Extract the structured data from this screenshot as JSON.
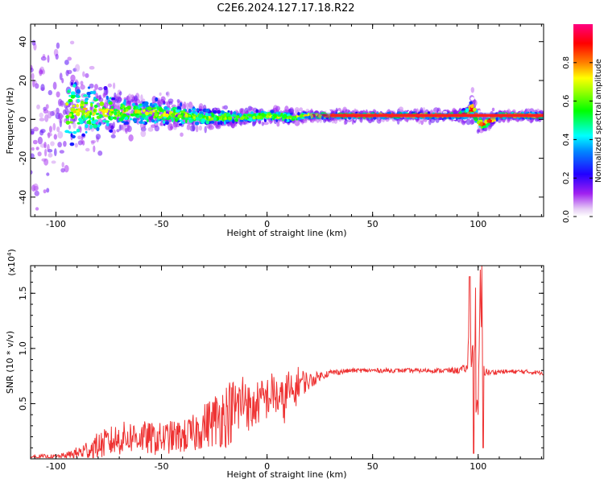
{
  "title": "C2E6.2024.127.17.18.R22",
  "chart_data": [
    {
      "type": "heatmap",
      "title": "C2E6.2024.127.17.18.R22",
      "xlabel": "Height of straight line (km)",
      "ylabel": "Frequency (Hz)",
      "xlim": [
        -112,
        131
      ],
      "ylim": [
        -50,
        49
      ],
      "xticks": [
        "-100",
        "-50",
        "0",
        "50",
        "100"
      ],
      "yticks": [
        "-40",
        "-20",
        "0",
        "20",
        "40"
      ],
      "colorbar": {
        "label": "Normalized spectral amplitude",
        "range": [
          0,
          1
        ],
        "ticks": [
          "0.0",
          "0.2",
          "0.4",
          "0.6",
          "0.8"
        ],
        "colors": [
          "#ffffff",
          "#a020f0",
          "#0000ff",
          "#00ffff",
          "#00ff00",
          "#ffff00",
          "#ff8000",
          "#ff0000",
          "#ff00a0"
        ]
      },
      "ridge": {
        "description_x_km": [
          -110,
          -90,
          -70,
          -50,
          -30,
          -10,
          0,
          10,
          20,
          30,
          50,
          70,
          90,
          95,
          97,
          100,
          102,
          110,
          131
        ],
        "center_freq_hz": [
          0,
          5,
          4,
          3,
          1,
          1,
          2,
          1,
          2,
          2,
          2,
          2,
          2,
          3,
          6,
          0,
          -3,
          2,
          2
        ],
        "spread_hz": [
          45,
          20,
          10,
          8,
          5,
          3,
          3,
          3,
          2,
          2,
          2,
          2,
          2,
          4,
          6,
          6,
          4,
          2,
          2
        ]
      }
    },
    {
      "type": "line",
      "title": "",
      "xlabel": "Height of straight line (km)",
      "ylabel": "SNR (10 * v/v)",
      "y_multiplier": "(x10",
      "y_multiplier_exp": "4",
      "xlim": [
        -112,
        131
      ],
      "ylim": [
        0,
        1.75
      ],
      "xticks": [
        "-100",
        "-50",
        "0",
        "50",
        "100"
      ],
      "yticks": [
        "0.5",
        "1.0",
        "1.5"
      ],
      "color": "#ee3333",
      "series": [
        {
          "x": [
            -112,
            -100,
            -95,
            -90,
            -85,
            -80,
            -75,
            -70,
            -65,
            -60,
            -55,
            -50,
            -45,
            -40,
            -35,
            -30,
            -25,
            -20,
            -15,
            -12,
            -10,
            -8,
            -5,
            0,
            3,
            5,
            8,
            10,
            12,
            15,
            20,
            25,
            30,
            40,
            50,
            60,
            70,
            80,
            90,
            95,
            96,
            97,
            98,
            99,
            100,
            101,
            102,
            103,
            105,
            110,
            120,
            131
          ],
          "values": [
            0.02,
            0.02,
            0.03,
            0.05,
            0.08,
            0.12,
            0.15,
            0.18,
            0.2,
            0.2,
            0.18,
            0.18,
            0.2,
            0.2,
            0.22,
            0.3,
            0.35,
            0.4,
            0.45,
            0.5,
            0.6,
            0.4,
            0.5,
            0.55,
            0.6,
            0.55,
            0.5,
            0.65,
            0.55,
            0.7,
            0.7,
            0.75,
            0.78,
            0.8,
            0.8,
            0.8,
            0.8,
            0.8,
            0.8,
            0.82,
            1.45,
            0.8,
            1.3,
            0.5,
            0.4,
            1.6,
            0.9,
            0.8,
            0.78,
            0.79,
            0.79,
            0.78
          ],
          "noise_amplitude": [
            0.02,
            0.02,
            0.03,
            0.06,
            0.1,
            0.12,
            0.14,
            0.15,
            0.15,
            0.15,
            0.15,
            0.15,
            0.15,
            0.15,
            0.18,
            0.2,
            0.25,
            0.3,
            0.3,
            0.3,
            0.3,
            0.2,
            0.2,
            0.2,
            0.2,
            0.2,
            0.2,
            0.2,
            0.18,
            0.15,
            0.08,
            0.04,
            0.03,
            0.02,
            0.02,
            0.02,
            0.02,
            0.02,
            0.03,
            0.04,
            0.2,
            0.2,
            0.2,
            0.1,
            0.1,
            0.2,
            0.2,
            0.05,
            0.03,
            0.02,
            0.02,
            0.02
          ]
        }
      ]
    }
  ]
}
